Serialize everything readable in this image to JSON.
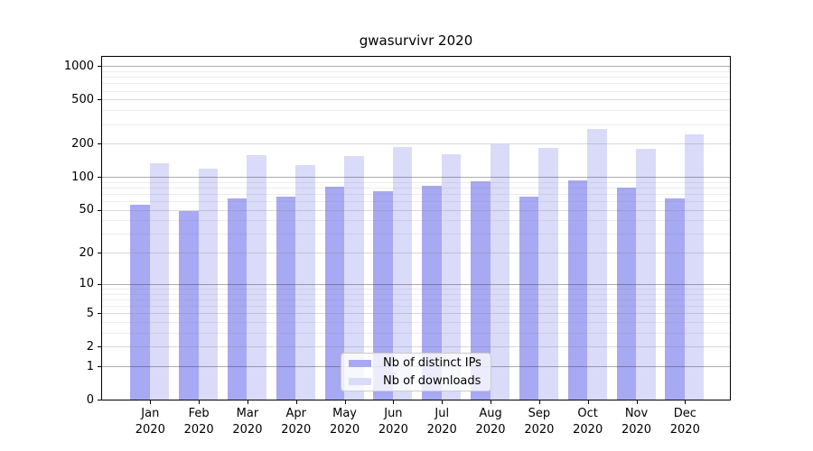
{
  "title": "gwasurvivr 2020",
  "chart_data": {
    "type": "bar",
    "title": "gwasurvivr 2020",
    "categories": [
      {
        "month": "Jan",
        "year": "2020"
      },
      {
        "month": "Feb",
        "year": "2020"
      },
      {
        "month": "Mar",
        "year": "2020"
      },
      {
        "month": "Apr",
        "year": "2020"
      },
      {
        "month": "May",
        "year": "2020"
      },
      {
        "month": "Jun",
        "year": "2020"
      },
      {
        "month": "Jul",
        "year": "2020"
      },
      {
        "month": "Aug",
        "year": "2020"
      },
      {
        "month": "Sep",
        "year": "2020"
      },
      {
        "month": "Oct",
        "year": "2020"
      },
      {
        "month": "Nov",
        "year": "2020"
      },
      {
        "month": "Dec",
        "year": "2020"
      }
    ],
    "series": [
      {
        "name": "Nb of distinct IPs",
        "color": "#a7a9f2",
        "values": [
          56,
          49,
          64,
          67,
          82,
          75,
          84,
          92,
          67,
          94,
          81,
          64
        ]
      },
      {
        "name": "Nb of downloads",
        "color": "#d9dbf9",
        "values": [
          135,
          120,
          159,
          130,
          157,
          189,
          163,
          199,
          183,
          276,
          180,
          244
        ]
      }
    ],
    "yscale": "log1p",
    "ylim": [
      0,
      1000
    ],
    "yticks": [
      0,
      1,
      2,
      5,
      10,
      20,
      50,
      100,
      200,
      500,
      1000
    ],
    "ytick_emphasis": [
      1,
      10,
      100,
      1000
    ],
    "minor_gridlines": [
      3,
      4,
      6,
      7,
      8,
      9,
      30,
      40,
      60,
      70,
      80,
      90,
      300,
      400,
      600,
      700,
      800,
      900
    ],
    "grid": true,
    "legend_position": "bottom-center",
    "xlabel": "",
    "ylabel": ""
  }
}
